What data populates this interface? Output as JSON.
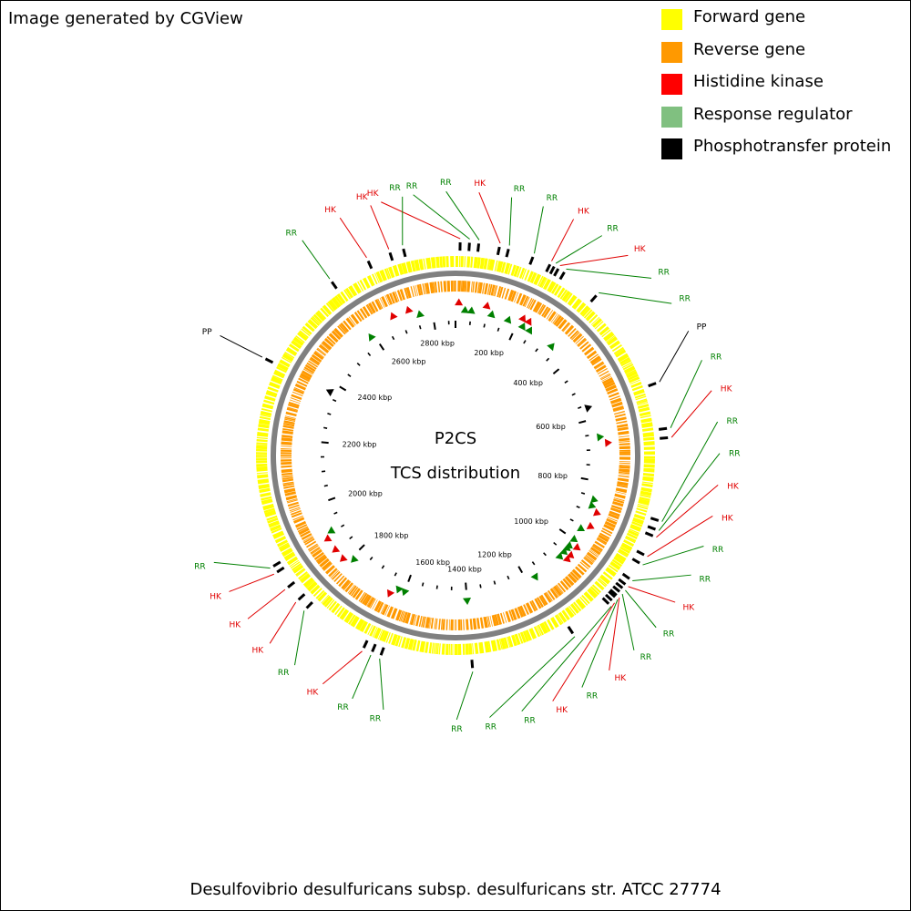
{
  "credit": "Image generated by CGView",
  "legend": [
    {
      "label": "Forward gene",
      "color": "#ffff00"
    },
    {
      "label": "Reverse gene",
      "color": "#ff9900"
    },
    {
      "label": "Histidine kinase",
      "color": "#ff0000"
    },
    {
      "label": "Response regulator",
      "color": "#80c080"
    },
    {
      "label": "Phosphotransfer protein",
      "color": "#000000"
    }
  ],
  "map": {
    "title_line1": "P2CS",
    "title_line2": "TCS distribution",
    "organism": "Desulfovibrio desulfuricans subsp. desulfuricans str. ATCC 27774",
    "genome_kbp": 2873,
    "backbone_color": "#808080",
    "tick_labels": [
      "200 kbp",
      "400 kbp",
      "600 kbp",
      "800 kbp",
      "1000 kbp",
      "1200 kbp",
      "1400 kbp",
      "1600 kbp",
      "1800 kbp",
      "2000 kbp",
      "2200 kbp",
      "2400 kbp",
      "2600 kbp",
      "2800 kbp"
    ],
    "tcs_features": [
      {
        "type": "HK",
        "kbp": 10
      },
      {
        "type": "RR",
        "kbp": 30
      },
      {
        "type": "RR",
        "kbp": 50
      },
      {
        "type": "HK",
        "kbp": 95
      },
      {
        "type": "RR",
        "kbp": 115
      },
      {
        "type": "RR",
        "kbp": 170
      },
      {
        "type": "HK",
        "kbp": 210
      },
      {
        "type": "RR",
        "kbp": 220
      },
      {
        "type": "HK",
        "kbp": 230
      },
      {
        "type": "RR",
        "kbp": 245
      },
      {
        "type": "RR",
        "kbp": 330
      },
      {
        "type": "PP",
        "kbp": 560
      },
      {
        "type": "RR",
        "kbp": 660
      },
      {
        "type": "HK",
        "kbp": 680
      },
      {
        "type": "RR",
        "kbp": 860
      },
      {
        "type": "RR",
        "kbp": 880
      },
      {
        "type": "HK",
        "kbp": 895
      },
      {
        "type": "HK",
        "kbp": 940
      },
      {
        "type": "RR",
        "kbp": 960
      },
      {
        "type": "RR",
        "kbp": 1000
      },
      {
        "type": "HK",
        "kbp": 1015
      },
      {
        "type": "RR",
        "kbp": 1025
      },
      {
        "type": "RR",
        "kbp": 1035
      },
      {
        "type": "HK",
        "kbp": 1045
      },
      {
        "type": "RR",
        "kbp": 1050
      },
      {
        "type": "HK",
        "kbp": 1060
      },
      {
        "type": "RR",
        "kbp": 1070
      },
      {
        "type": "RR",
        "kbp": 1170
      },
      {
        "type": "RR",
        "kbp": 1400
      },
      {
        "type": "RR",
        "kbp": 1600
      },
      {
        "type": "RR",
        "kbp": 1620
      },
      {
        "type": "HK",
        "kbp": 1640
      },
      {
        "type": "RR",
        "kbp": 1790
      },
      {
        "type": "HK",
        "kbp": 1815
      },
      {
        "type": "HK",
        "kbp": 1850
      },
      {
        "type": "HK",
        "kbp": 1890
      },
      {
        "type": "RR",
        "kbp": 1905
      },
      {
        "type": "PP",
        "kbp": 2370
      },
      {
        "type": "RR",
        "kbp": 2590
      },
      {
        "type": "HK",
        "kbp": 2680
      },
      {
        "type": "HK",
        "kbp": 2730
      },
      {
        "type": "RR",
        "kbp": 2760
      }
    ],
    "tcs_colors": {
      "HK": "#e00000",
      "RR": "#008000",
      "PP": "#000000"
    }
  }
}
